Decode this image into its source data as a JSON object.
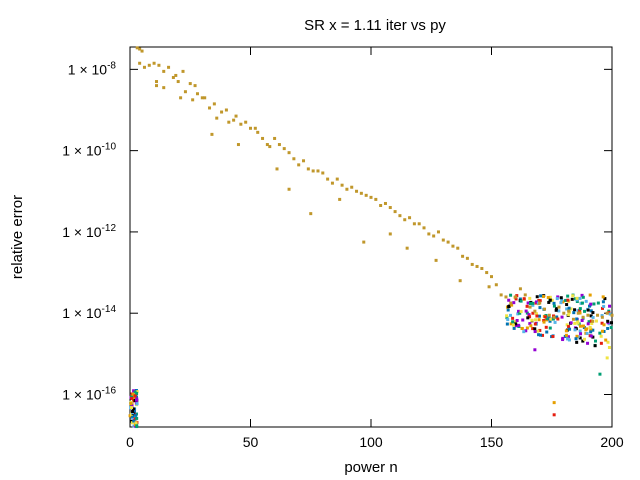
{
  "chart_data": {
    "type": "scatter",
    "title": "SR x = 1.11 iter vs py",
    "xlabel": "power n",
    "ylabel": "relative error",
    "xlim": [
      0,
      200
    ],
    "ylim_log10": [
      -16.8,
      -7.45
    ],
    "y_scale": "log",
    "grid": false,
    "legend": "none",
    "x_ticks": [
      {
        "value": 0,
        "label": "0"
      },
      {
        "value": 50,
        "label": "50"
      },
      {
        "value": 100,
        "label": "100"
      },
      {
        "value": 150,
        "label": "150"
      },
      {
        "value": 200,
        "label": "200"
      }
    ],
    "y_ticks": [
      {
        "value_log10": -8,
        "label": "1 × 10",
        "exp": "-8"
      },
      {
        "value_log10": -10,
        "label": "1 × 10",
        "exp": "-10"
      },
      {
        "value_log10": -12,
        "label": "1 × 10",
        "exp": "-12"
      },
      {
        "value_log10": -14,
        "label": "1 × 10",
        "exp": "-14"
      },
      {
        "value_log10": -16,
        "label": "1 × 10",
        "exp": "-16"
      }
    ],
    "main_series": {
      "color": "#c0972b",
      "points_log10": [
        [
          3,
          -7.47
        ],
        [
          4,
          -7.5
        ],
        [
          5,
          -7.55
        ],
        [
          4,
          -7.85
        ],
        [
          6,
          -7.95
        ],
        [
          8,
          -7.9
        ],
        [
          10,
          -7.85
        ],
        [
          11,
          -8.3
        ],
        [
          12,
          -7.9
        ],
        [
          14,
          -8.05
        ],
        [
          16,
          -7.95
        ],
        [
          18,
          -8.2
        ],
        [
          19,
          -8.15
        ],
        [
          20,
          -8.3
        ],
        [
          22,
          -8.05
        ],
        [
          23,
          -8.55
        ],
        [
          25,
          -8.35
        ],
        [
          27,
          -8.4
        ],
        [
          28,
          -8.6
        ],
        [
          30,
          -8.7
        ],
        [
          31,
          -8.7
        ],
        [
          33,
          -8.95
        ],
        [
          35,
          -8.85
        ],
        [
          36,
          -9.2
        ],
        [
          38,
          -9.05
        ],
        [
          40,
          -9.0
        ],
        [
          41,
          -9.3
        ],
        [
          43,
          -9.25
        ],
        [
          44,
          -9.15
        ],
        [
          46,
          -9.35
        ],
        [
          48,
          -9.3
        ],
        [
          50,
          -9.45
        ],
        [
          52,
          -9.45
        ],
        [
          53,
          -9.55
        ],
        [
          55,
          -9.7
        ],
        [
          57,
          -9.85
        ],
        [
          58,
          -9.9
        ],
        [
          60,
          -9.7
        ],
        [
          62,
          -9.85
        ],
        [
          64,
          -9.95
        ],
        [
          66,
          -10.05
        ],
        [
          68,
          -10.2
        ],
        [
          70,
          -10.35
        ],
        [
          72,
          -10.25
        ],
        [
          74,
          -10.45
        ],
        [
          76,
          -10.5
        ],
        [
          78,
          -10.5
        ],
        [
          80,
          -10.55
        ],
        [
          82,
          -10.7
        ],
        [
          84,
          -10.8
        ],
        [
          86,
          -10.7
        ],
        [
          88,
          -10.85
        ],
        [
          90,
          -10.95
        ],
        [
          92,
          -10.9
        ],
        [
          94,
          -11.0
        ],
        [
          96,
          -11.05
        ],
        [
          98,
          -11.1
        ],
        [
          100,
          -11.15
        ],
        [
          102,
          -11.2
        ],
        [
          104,
          -11.35
        ],
        [
          106,
          -11.3
        ],
        [
          108,
          -11.4
        ],
        [
          110,
          -11.5
        ],
        [
          112,
          -11.6
        ],
        [
          114,
          -11.7
        ],
        [
          116,
          -11.65
        ],
        [
          118,
          -11.8
        ],
        [
          120,
          -11.8
        ],
        [
          122,
          -11.9
        ],
        [
          124,
          -12.05
        ],
        [
          126,
          -12.1
        ],
        [
          128,
          -12.0
        ],
        [
          130,
          -12.2
        ],
        [
          132,
          -12.25
        ],
        [
          134,
          -12.35
        ],
        [
          136,
          -12.4
        ],
        [
          138,
          -12.6
        ],
        [
          140,
          -12.65
        ],
        [
          142,
          -12.8
        ],
        [
          144,
          -12.85
        ],
        [
          146,
          -12.9
        ],
        [
          148,
          -13.0
        ],
        [
          150,
          -13.1
        ],
        [
          152,
          -13.3
        ],
        [
          154,
          -13.55
        ],
        [
          156,
          -13.6
        ],
        [
          158,
          -13.75
        ],
        [
          160,
          -13.6
        ],
        [
          162,
          -13.4
        ],
        [
          164,
          -13.55
        ],
        [
          166,
          -13.85
        ],
        [
          168,
          -13.95
        ],
        [
          170,
          -13.75
        ],
        [
          172,
          -13.9
        ],
        [
          174,
          -14.05
        ],
        [
          176,
          -14.1
        ],
        [
          178,
          -13.85
        ],
        [
          180,
          -14.0
        ],
        [
          182,
          -13.95
        ],
        [
          184,
          -14.15
        ],
        [
          186,
          -14.0
        ],
        [
          188,
          -14.1
        ],
        [
          190,
          -14.05
        ],
        [
          192,
          -14.2
        ],
        [
          194,
          -14.05
        ],
        [
          196,
          -14.1
        ],
        [
          198,
          -14.0
        ],
        [
          200,
          -14.05
        ],
        [
          11,
          -8.4
        ],
        [
          14,
          -8.45
        ],
        [
          21,
          -8.7
        ],
        [
          26,
          -8.75
        ],
        [
          34,
          -9.6
        ],
        [
          45,
          -9.85
        ],
        [
          61,
          -10.45
        ],
        [
          66,
          -10.95
        ],
        [
          75,
          -11.55
        ],
        [
          87,
          -11.2
        ],
        [
          97,
          -12.25
        ],
        [
          108,
          -12.05
        ],
        [
          115,
          -12.4
        ],
        [
          127,
          -12.7
        ],
        [
          137,
          -13.2
        ],
        [
          149,
          -13.35
        ]
      ]
    },
    "cluster_series_colors": [
      "#9400d3",
      "#009e73",
      "#56b4e9",
      "#e69f00",
      "#f0e442",
      "#0072b2",
      "#e51e10",
      "#000000"
    ],
    "right_cluster": {
      "x_range": [
        150,
        200
      ],
      "log10_range": [
        -14.9,
        -13.55
      ],
      "outliers_log10": [
        [
          168,
          -14.9
        ],
        [
          176,
          -16.2
        ],
        [
          176,
          -16.5
        ],
        [
          195,
          -15.5
        ],
        [
          198,
          -15.1
        ],
        [
          193,
          -14.8
        ]
      ]
    },
    "left_cluster": {
      "x_range": [
        0,
        3
      ],
      "log10_range": [
        -16.8,
        -15.9
      ]
    }
  }
}
